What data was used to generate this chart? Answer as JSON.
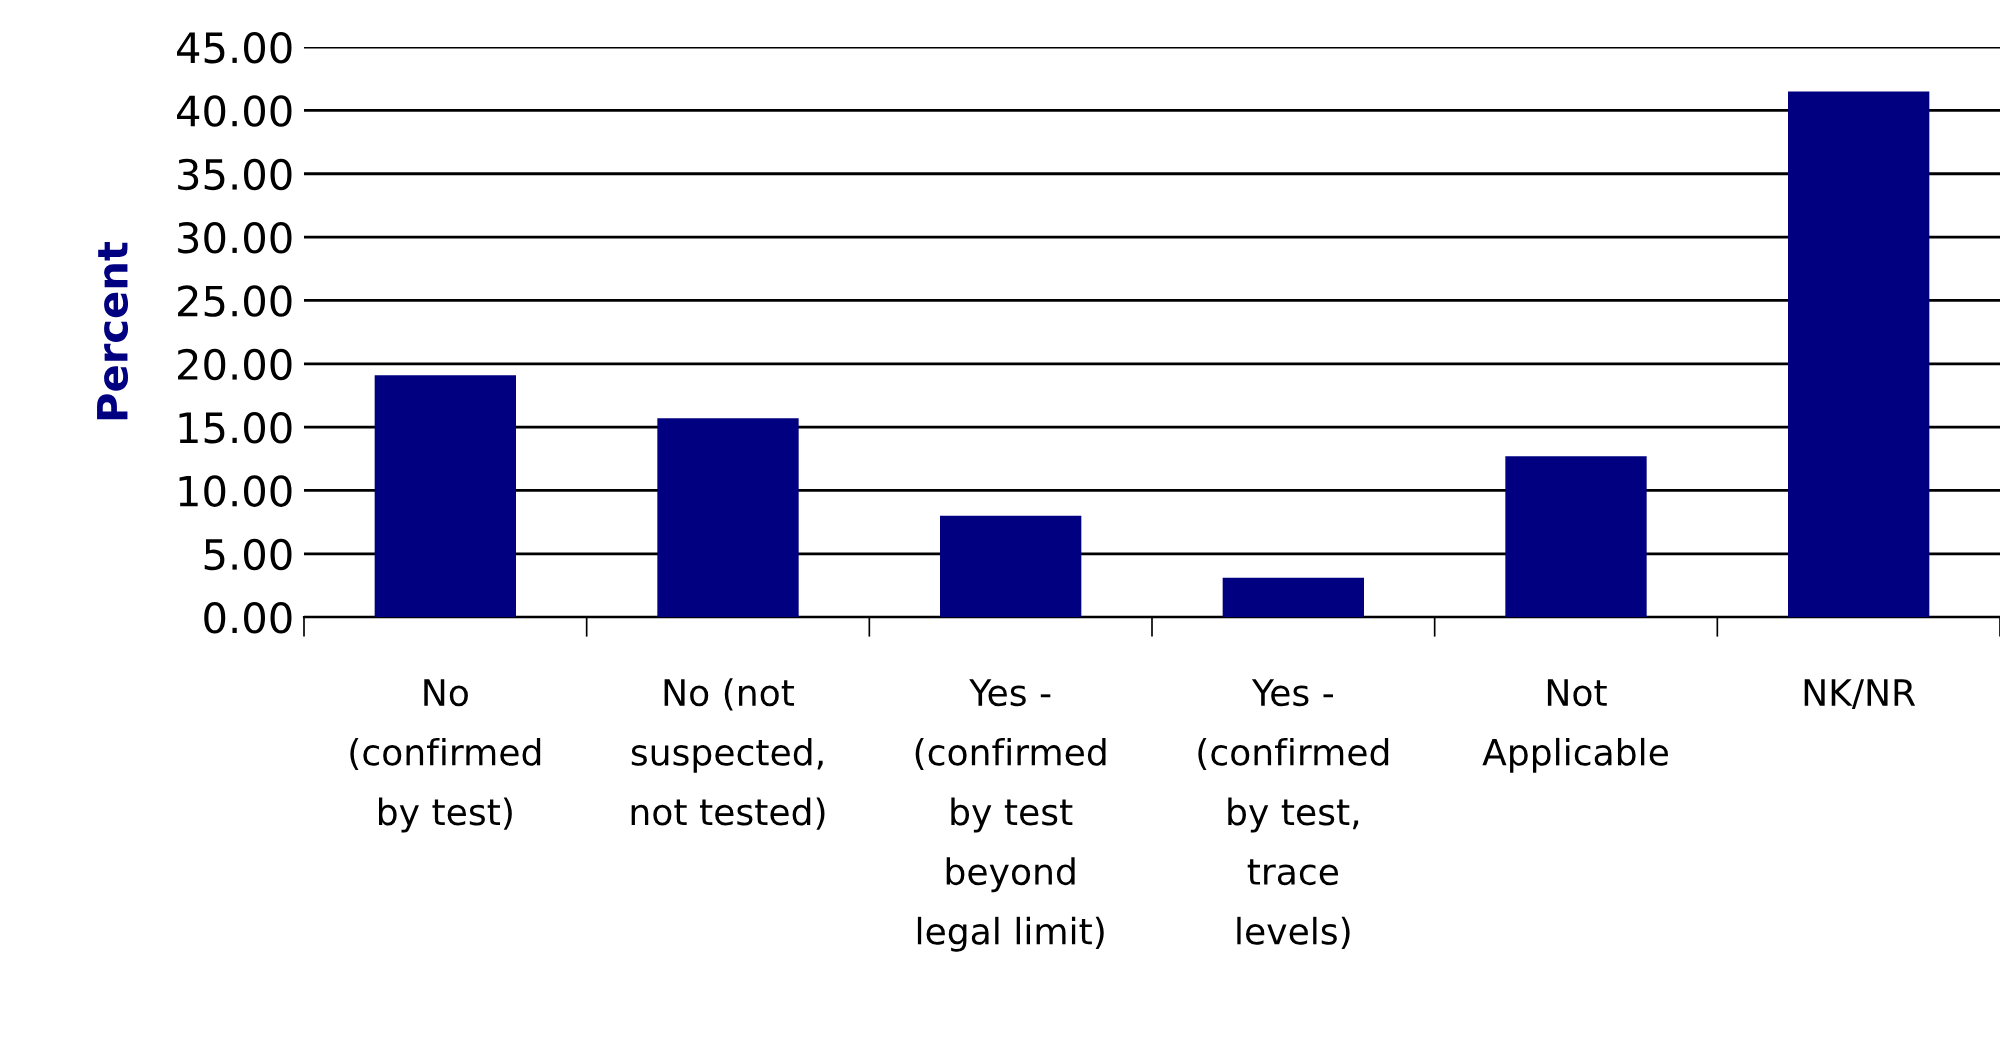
{
  "chart_data": {
    "type": "bar",
    "ylabel": "Percent",
    "categories": [
      "No\n(confirmed\nby test)",
      "No (not\nsuspected,\nnot tested)",
      "Yes -\n(confirmed\nby test\nbeyond\nlegal limit)",
      "Yes -\n(confirmed\nby test,\ntrace\nlevels)",
      "Not\nApplicable",
      "NK/NR"
    ],
    "values": [
      19.1,
      15.7,
      8.0,
      3.1,
      12.7,
      41.5
    ],
    "color": "#000080",
    "ylim": [
      0,
      45
    ],
    "yticks": [
      {
        "value": 0,
        "label": "0.00"
      },
      {
        "value": 5,
        "label": "5.00"
      },
      {
        "value": 10,
        "label": "10.00"
      },
      {
        "value": 15,
        "label": "15.00"
      },
      {
        "value": 20,
        "label": "20.00"
      },
      {
        "value": 25,
        "label": "25.00"
      },
      {
        "value": 30,
        "label": "30.00"
      },
      {
        "value": 35,
        "label": "35.00"
      },
      {
        "value": 40,
        "label": "40.00"
      },
      {
        "value": 45,
        "label": "45.00"
      }
    ],
    "grid": "y",
    "legend": false
  }
}
